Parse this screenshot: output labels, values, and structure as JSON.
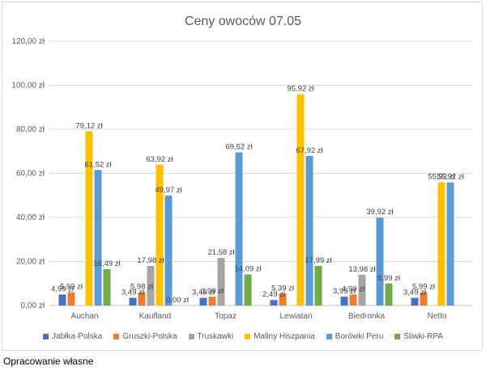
{
  "chart_data": {
    "type": "bar",
    "title": "Ceny owoców 07.05",
    "categories": [
      "Auchan",
      "Kaufland",
      "Topaz",
      "Lewiatan",
      "Biedronka",
      "Netto"
    ],
    "ylim": [
      0,
      120
    ],
    "yticks": [
      0,
      20,
      40,
      60,
      80,
      100,
      120
    ],
    "ytick_labels": [
      "0,00 zł",
      "20,00 zł",
      "40,00 zł",
      "60,00 zł",
      "80,00 zł",
      "100,00 zł",
      "120,00 zł"
    ],
    "grid": true,
    "legend_position": "bottom",
    "series": [
      {
        "name": "Jabłka-Polska",
        "color": "#4472c4",
        "values": [
          4.99,
          3.49,
          3.49,
          2.49,
          3.99,
          3.49
        ],
        "labels": [
          "4,99 zł",
          "3,49 zł",
          "3,49 zł",
          "2,49 zł",
          "3,99 zł",
          "3,49 zł"
        ]
      },
      {
        "name": "Gruszki-Polska",
        "color": "#ed7d31",
        "values": [
          5.99,
          5.98,
          3.99,
          5.39,
          4.99,
          5.99
        ],
        "labels": [
          "5,99 zł",
          "5,98 zł",
          "3,99 zł",
          "5,39 zł",
          "4,99 zł",
          "5,99 zł"
        ]
      },
      {
        "name": "Truskawki",
        "color": "#a5a5a5",
        "values": [
          null,
          17.98,
          21.58,
          null,
          13.98,
          null
        ],
        "labels": [
          "",
          "17,98 zł",
          "21,58 zł",
          "",
          "13,98 zł",
          ""
        ]
      },
      {
        "name": "Maliny Hiszpania",
        "color": "#ffc000",
        "values": [
          79.12,
          63.92,
          null,
          95.92,
          null,
          55.92
        ],
        "labels": [
          "79,12 zł",
          "63,92 zł",
          "",
          "95,92 zł",
          "",
          "55,92 zł"
        ]
      },
      {
        "name": "Borówki Peru",
        "color": "#5b9bd5",
        "values": [
          61.52,
          49.97,
          69.52,
          67.92,
          39.92,
          55.92
        ],
        "labels": [
          "61,52 zł",
          "49,97 zł",
          "69,52 zł",
          "67,92 zł",
          "39,92 zł",
          "55,92 zł"
        ]
      },
      {
        "name": "Śliwki-RPA",
        "color": "#70ad47",
        "values": [
          16.49,
          0.0,
          14.09,
          17.99,
          9.99,
          null
        ],
        "labels": [
          "16,49 zł",
          "0,00 zł",
          "14,09 zł",
          "17,99 zł",
          "9,99 zł",
          ""
        ]
      }
    ]
  },
  "footer": {
    "source": "Opracowanie własne"
  }
}
